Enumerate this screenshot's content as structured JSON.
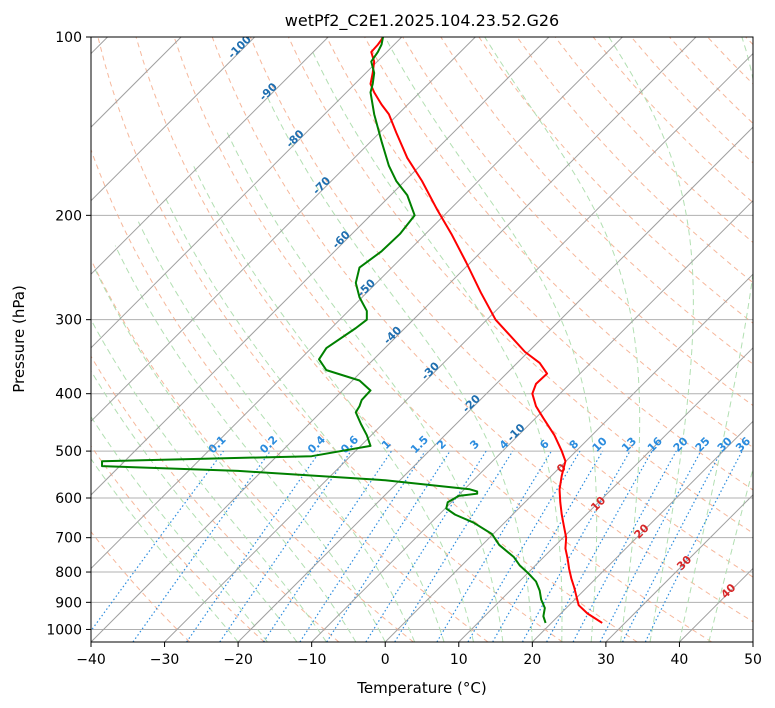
{
  "chart_data": {
    "type": "line",
    "title": "wetPf2_C2E1.2025.104.23.52.G26",
    "xlabel": "Temperature (°C)",
    "ylabel": "Pressure (hPa)",
    "xlim": [
      -40,
      50
    ],
    "ylim": [
      1050,
      100
    ],
    "y_scale": "log",
    "grid": true,
    "x_ticks": [
      -40,
      -30,
      -20,
      -10,
      0,
      10,
      20,
      30,
      40,
      50
    ],
    "y_ticks": [
      100,
      200,
      300,
      400,
      500,
      600,
      700,
      800,
      900,
      1000
    ],
    "colors": {
      "temperature": "#ff0000",
      "dewpoint": "#008000",
      "isotherm": "#a0a0a0",
      "dry_adiabat": "#f4a582",
      "moist_adiabat": "#b2dfb2",
      "mixing_ratio": "#2b8cde",
      "isotherm_label": "#1f6fb0",
      "red_label": "#d62728"
    },
    "isotherm_labels": [
      "-100",
      "-90",
      "-80",
      "-70",
      "-60",
      "-50",
      "-40",
      "-30",
      "-20",
      "-10"
    ],
    "isotherm_label_values": [
      -100,
      -90,
      -80,
      -70,
      -60,
      -50,
      -40,
      -30,
      -20,
      -10
    ],
    "isotherm_label_pressures": [
      105,
      125,
      150,
      180,
      222,
      268,
      322,
      370,
      420,
      470
    ],
    "mixing_ratio_labels": [
      "0.1",
      "0.2",
      "0.4",
      "0.6",
      "1",
      "1.5",
      "2",
      "3",
      "4",
      "6",
      "8",
      "10",
      "13",
      "16",
      "20",
      "25",
      "30",
      "36"
    ],
    "mixing_ratio_values": [
      0.1,
      0.2,
      0.4,
      0.6,
      1,
      1.5,
      2,
      3,
      4,
      6,
      8,
      10,
      13,
      16,
      20,
      25,
      30,
      36
    ],
    "mixing_ratio_label_x": [
      -22.5,
      -15.5,
      -9,
      -4.5,
      0.5,
      5,
      8,
      12.5,
      16.5,
      22,
      26,
      29.5,
      33.5,
      37,
      40.5,
      43.5,
      46.5,
      49
    ],
    "red_labels": [
      "0",
      "10",
      "20",
      "30",
      "40"
    ],
    "red_label_x": [
      24.3,
      29.3,
      35.2,
      41,
      47
    ],
    "red_label_p": [
      540,
      620,
      690,
      780,
      870
    ],
    "series": [
      {
        "name": "temperature",
        "x": [
          29.5,
          27.5,
          26.3,
          26,
          25.7,
          25.3,
          25,
          24.8,
          24.5,
          24.6,
          24.3,
          24,
          23.8,
          23.7,
          24,
          24.5,
          24,
          23,
          21.5,
          20.5,
          20,
          20.5,
          22,
          21,
          19,
          15,
          13,
          11,
          9,
          7,
          5,
          3,
          1.5,
          0.5,
          -0.5,
          -1.5,
          -2,
          -1.7,
          -1.5,
          -1.9,
          -1,
          -0.5,
          -0.3
        ],
        "p": [
          975,
          940,
          910,
          880,
          850,
          820,
          790,
          760,
          730,
          700,
          670,
          640,
          610,
          580,
          550,
          520,
          500,
          470,
          440,
          420,
          400,
          385,
          370,
          355,
          340,
          300,
          270,
          240,
          215,
          195,
          175,
          160,
          145,
          135,
          130,
          124,
          120,
          115,
          110,
          106,
          103,
          101,
          100
        ]
      },
      {
        "name": "dewpoint",
        "x": [
          21.8,
          21.5,
          21.7,
          21.2,
          21,
          20.5,
          19.5,
          18.3,
          17.5,
          15.5,
          14.5,
          12,
          9.5,
          8.3,
          8.5,
          10,
          12.5,
          12.5,
          11.5,
          0,
          -20,
          -38.5,
          -38.5,
          -10,
          -2,
          -2.5,
          -3.3,
          -4,
          -3.5,
          -3.2,
          -2,
          -3.5,
          -8,
          -9,
          -8,
          -4,
          -2.5,
          -2.5,
          -3.5,
          -4,
          -3.5,
          -0.5,
          2,
          4,
          3,
          1.5,
          0.5,
          -0.5,
          -1.5,
          -2,
          -1.7,
          -1.5,
          -1.9,
          -1,
          -0.5,
          -0.3
        ],
        "p": [
          975,
          950,
          920,
          890,
          860,
          830,
          805,
          780,
          755,
          720,
          690,
          660,
          640,
          625,
          610,
          595,
          590,
          585,
          580,
          560,
          540,
          530,
          520,
          510,
          490,
          470,
          450,
          430,
          420,
          410,
          395,
          380,
          365,
          350,
          335,
          310,
          300,
          290,
          275,
          260,
          245,
          230,
          215,
          200,
          185,
          175,
          165,
          150,
          135,
          124,
          120,
          115,
          110,
          106,
          103,
          100
        ]
      }
    ]
  }
}
